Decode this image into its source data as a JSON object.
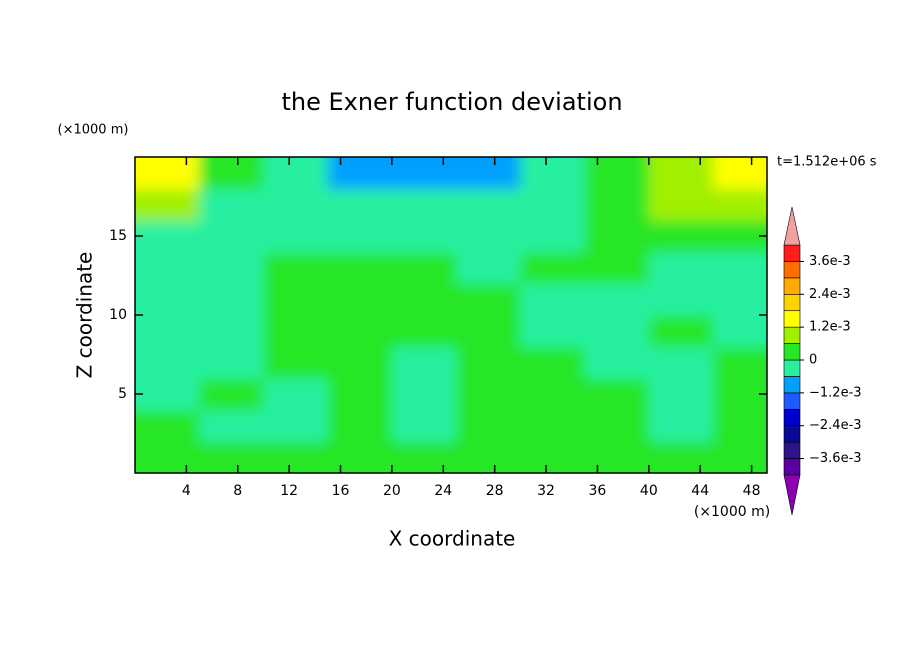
{
  "chart_data": {
    "type": "contour",
    "title": "the Exner function deviation",
    "x_label": "X coordinate",
    "y_label": "Z coordinate",
    "x_unit": "(×1000 m)",
    "y_unit": "(×1000 m)",
    "time_label": "t=1.512e+06 s",
    "xlim": [
      0,
      49.2
    ],
    "ylim": [
      0,
      20
    ],
    "xticks": [
      4,
      8,
      12,
      16,
      20,
      24,
      28,
      32,
      36,
      40,
      44,
      48
    ],
    "yticks": [
      5,
      10,
      15
    ],
    "x": [
      2.5,
      7.5,
      12.5,
      17.5,
      22.5,
      27.5,
      32.5,
      37.5,
      42.5,
      47.5
    ],
    "z": [
      1,
      3,
      5,
      7,
      9,
      11,
      13,
      15,
      17,
      19
    ],
    "values": [
      [
        0.0001,
        0.0002,
        0.0001,
        0.0002,
        0.0001,
        0.0002,
        0.0001,
        0.0002,
        0.0001,
        0.0002
      ],
      [
        0.0001,
        -0.0001,
        -0.0002,
        0.0002,
        -0.0003,
        0.0001,
        0.0002,
        0.0001,
        -0.0003,
        0.0002
      ],
      [
        -0.0002,
        0.0001,
        -0.0001,
        0.0002,
        -0.0001,
        0.0001,
        0.0002,
        0.0001,
        -0.0004,
        0.0002
      ],
      [
        -0.0002,
        -0.0001,
        0.0001,
        0.0002,
        -0.0001,
        0.0002,
        0.0002,
        -0.0001,
        -0.0002,
        0.0002
      ],
      [
        -0.0002,
        -0.0001,
        0.0002,
        0.0002,
        0.0001,
        0.0002,
        -0.0001,
        -0.0002,
        0.0001,
        -0.0001
      ],
      [
        -0.0002,
        -0.0001,
        0.0002,
        0.0002,
        0.0002,
        0.0001,
        -0.0001,
        -0.0002,
        -0.0002,
        -0.0002
      ],
      [
        -0.0002,
        -0.0001,
        0.0002,
        0.0003,
        0.0002,
        -0.0001,
        0.0002,
        0.0002,
        -0.0001,
        -0.0002
      ],
      [
        -0.0002,
        -0.0002,
        -0.0002,
        -0.0002,
        -0.0002,
        -0.0002,
        -0.0002,
        0.0003,
        0.0004,
        0.0004
      ],
      [
        0.0008,
        -0.0002,
        -0.0004,
        -0.0005,
        -0.0005,
        -0.0004,
        -0.0002,
        0.0004,
        0.0008,
        0.0009
      ],
      [
        0.0013,
        0.0003,
        -0.0003,
        -0.0008,
        -0.0009,
        -0.0007,
        -0.0003,
        0.0004,
        0.0009,
        0.0014
      ]
    ],
    "colorbar": {
      "levels": [
        -0.0042,
        -0.0036,
        -0.003,
        -0.0024,
        -0.0018,
        -0.0012,
        -0.0006,
        0,
        0.0006,
        0.0012,
        0.0018,
        0.0024,
        0.003,
        0.0036,
        0.0042
      ],
      "colors": [
        "#8c00b4",
        "#5a00a0",
        "#2d148c",
        "#0a0a96",
        "#0000cd",
        "#1e5aff",
        "#00a0ff",
        "#28f0a0",
        "#28e628",
        "#a0f000",
        "#ffff00",
        "#ffd200",
        "#ffaa00",
        "#ff6e00",
        "#ff1e1e",
        "#f4a0a0"
      ],
      "ticks": [
        {
          "value": 0.0036,
          "label": "3.6e-3"
        },
        {
          "value": 0.0024,
          "label": "2.4e-3"
        },
        {
          "value": 0.0012,
          "label": "1.2e-3"
        },
        0,
        {
          "value": -0.0012,
          "label": "−1.2e-3"
        },
        {
          "value": -0.0024,
          "label": "−2.4e-3"
        },
        {
          "value": -0.0036,
          "label": "−3.6e-3"
        }
      ]
    }
  }
}
